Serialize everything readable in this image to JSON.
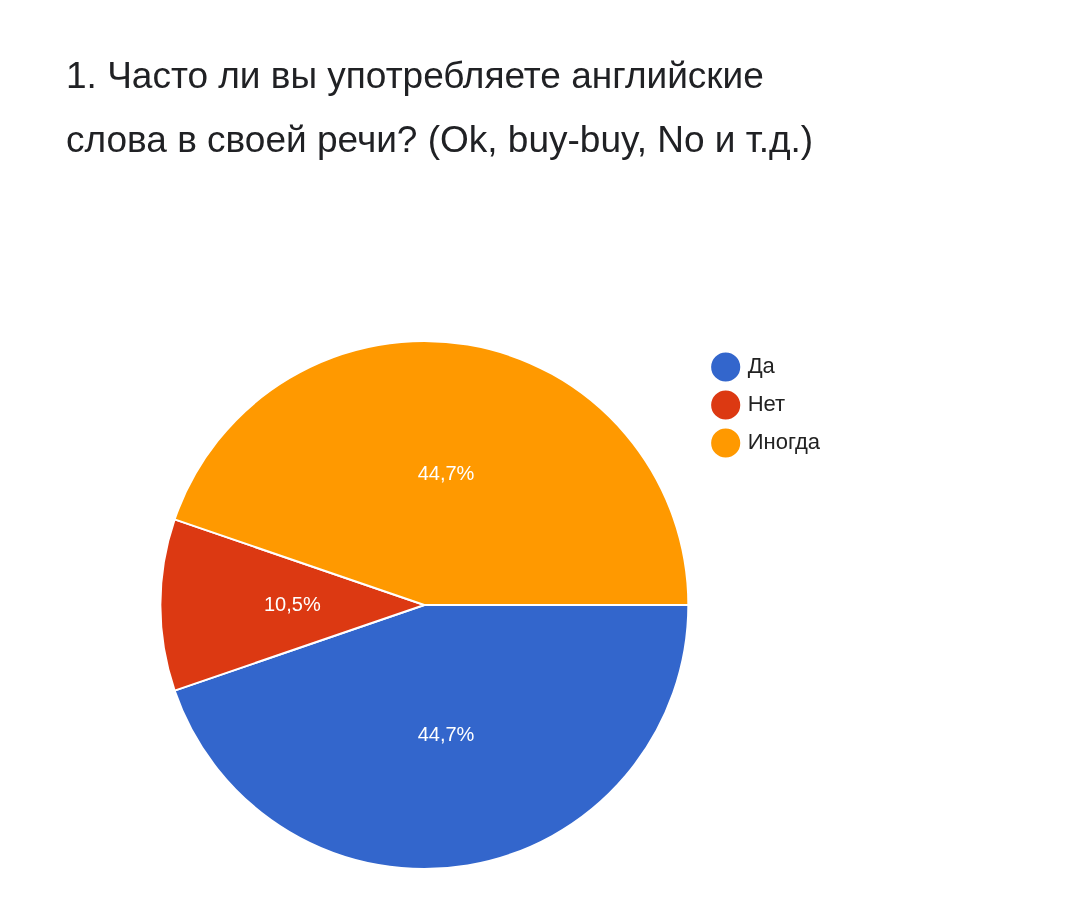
{
  "chart_data": {
    "type": "pie",
    "title": "1. Часто ли вы употребляете английские слова в своей речи? (Ok, buy-buy, No и т.д.)",
    "categories": [
      "Да",
      "Нет",
      "Иногда"
    ],
    "values": [
      44.7,
      10.5,
      44.7
    ],
    "colors": [
      "#3366cc",
      "#dc3912",
      "#ff9900"
    ],
    "value_labels": [
      "44,7%",
      "10,5%",
      "44,7%"
    ],
    "legend": "right"
  }
}
